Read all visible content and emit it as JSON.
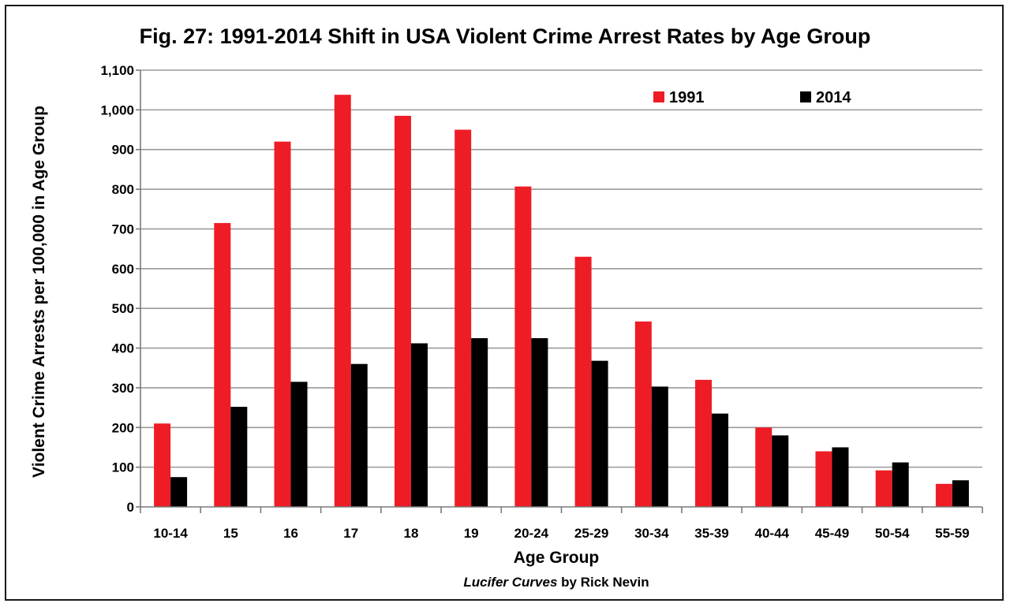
{
  "chart_data": {
    "type": "bar",
    "title": "Fig. 27: 1991-2014 Shift in USA Violent Crime Arrest Rates by Age Group",
    "xlabel": "Age Group",
    "ylabel": "Violent Crime Arrests per 100,000 in Age Group",
    "ylim": [
      0,
      1100
    ],
    "yticks": [
      "0",
      "100",
      "200",
      "300",
      "400",
      "500",
      "600",
      "700",
      "800",
      "900",
      "1,000",
      "1,100"
    ],
    "categories": [
      "10-14",
      "15",
      "16",
      "17",
      "18",
      "19",
      "20-24",
      "25-29",
      "30-34",
      "35-39",
      "40-44",
      "45-49",
      "50-54",
      "55-59"
    ],
    "series": [
      {
        "name": "1991",
        "color": "#ee1c25",
        "values": [
          210,
          715,
          920,
          1038,
          985,
          950,
          807,
          630,
          467,
          320,
          200,
          140,
          92,
          58
        ]
      },
      {
        "name": "2014",
        "color": "#000000",
        "values": [
          75,
          252,
          315,
          360,
          412,
          425,
          425,
          368,
          303,
          235,
          180,
          150,
          112,
          67
        ]
      }
    ],
    "grid": true,
    "legend": "top-right"
  },
  "credit": {
    "italic": "Lucifer Curves",
    "rest": " by Rick Nevin"
  }
}
